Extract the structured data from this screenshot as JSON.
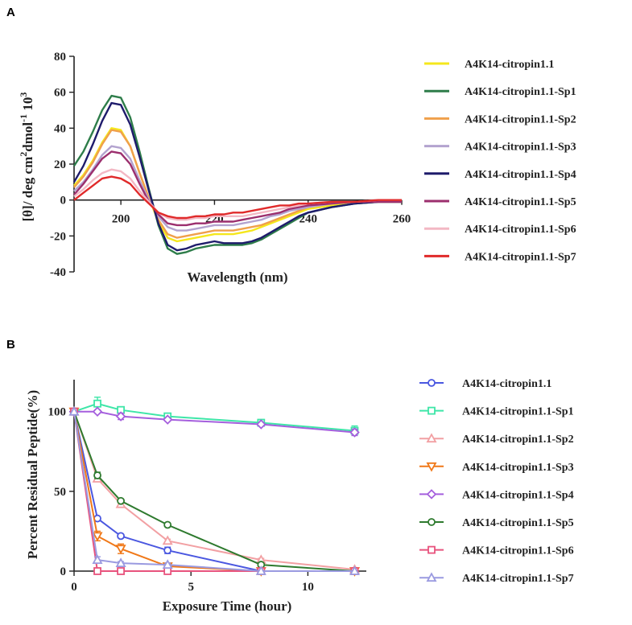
{
  "chart_data": [
    {
      "panel": "A",
      "type": "line",
      "xlabel": "Wavelength (nm)",
      "ylabel": "[θ]/ deg cm²dmol⁻¹ 10³",
      "ylabel_main": "[θ]/ deg cm",
      "ylabel_sup1": "2",
      "ylabel_mid": "dmol",
      "ylabel_sup2": "-1",
      "ylabel_end": " 10",
      "ylabel_sup3": "3",
      "xlim": [
        190,
        260
      ],
      "ylim": [
        -40,
        80
      ],
      "x_ticks": [
        "200",
        "220",
        "240",
        "260"
      ],
      "y_ticks": [
        "80",
        "60",
        "40",
        "20",
        "0",
        "-20",
        "-40"
      ],
      "x": [
        190,
        192,
        194,
        196,
        198,
        200,
        202,
        204,
        206,
        208,
        210,
        212,
        214,
        216,
        218,
        220,
        222,
        224,
        226,
        228,
        230,
        232,
        234,
        236,
        238,
        240,
        245,
        250,
        255,
        260
      ],
      "series": [
        {
          "name": "A4K14-citropin1.1",
          "color": "#f5e71c",
          "values": [
            8,
            14,
            22,
            32,
            40,
            39,
            30,
            15,
            1,
            -12,
            -21,
            -23,
            -22,
            -21,
            -20,
            -19,
            -19,
            -19,
            -18,
            -17,
            -15,
            -13,
            -11,
            -9,
            -7,
            -5,
            -3,
            -2,
            -1,
            -1
          ]
        },
        {
          "name": "A4K14-citropin1.1-Sp1",
          "color": "#2e7d4a",
          "values": [
            19,
            27,
            38,
            50,
            58,
            57,
            46,
            27,
            6,
            -14,
            -27,
            -30,
            -29,
            -27,
            -26,
            -25,
            -25,
            -25,
            -25,
            -24,
            -22,
            -19,
            -16,
            -13,
            -10,
            -7,
            -4,
            -2,
            -1,
            -1
          ]
        },
        {
          "name": "A4K14-citropin1.1-Sp2",
          "color": "#f0a04b",
          "values": [
            7,
            13,
            21,
            31,
            39,
            38,
            30,
            15,
            1,
            -11,
            -19,
            -21,
            -20,
            -19,
            -18,
            -17,
            -17,
            -17,
            -16,
            -15,
            -14,
            -12,
            -10,
            -8,
            -6,
            -4,
            -2,
            -1,
            -1,
            -1
          ]
        },
        {
          "name": "A4K14-citropin1.1-Sp3",
          "color": "#b3a3cf",
          "values": [
            5,
            10,
            17,
            25,
            30,
            29,
            23,
            11,
            0,
            -9,
            -15,
            -17,
            -17,
            -16,
            -15,
            -14,
            -14,
            -14,
            -13,
            -12,
            -11,
            -9,
            -8,
            -6,
            -5,
            -4,
            -2,
            -1,
            -1,
            -1
          ]
        },
        {
          "name": "A4K14-citropin1.1-Sp4",
          "color": "#1e1b6b",
          "values": [
            10,
            19,
            31,
            44,
            54,
            53,
            42,
            24,
            5,
            -13,
            -25,
            -28,
            -27,
            -25,
            -24,
            -23,
            -24,
            -24,
            -24,
            -23,
            -21,
            -18,
            -15,
            -12,
            -9,
            -7,
            -4,
            -2,
            -1,
            -1
          ]
        },
        {
          "name": "A4K14-citropin1.1-Sp5",
          "color": "#9c2f6e",
          "values": [
            3,
            9,
            16,
            23,
            27,
            26,
            20,
            9,
            -1,
            -8,
            -13,
            -14,
            -14,
            -13,
            -13,
            -12,
            -12,
            -12,
            -11,
            -10,
            -9,
            -8,
            -7,
            -5,
            -4,
            -3,
            -2,
            -1,
            -1,
            -1
          ]
        },
        {
          "name": "A4K14-citropin1.1-Sp6",
          "color": "#f3b8c4",
          "values": [
            2,
            6,
            11,
            15,
            17,
            16,
            12,
            5,
            -1,
            -7,
            -10,
            -11,
            -11,
            -10,
            -10,
            -9,
            -9,
            -9,
            -9,
            -8,
            -7,
            -6,
            -5,
            -4,
            -3,
            -2,
            -1,
            -1,
            0,
            0
          ]
        },
        {
          "name": "A4K14-citropin1.1-Sp7",
          "color": "#e02a2a",
          "values": [
            0,
            4,
            8,
            12,
            13,
            12,
            9,
            3,
            -2,
            -7,
            -9,
            -10,
            -10,
            -9,
            -9,
            -8,
            -8,
            -7,
            -7,
            -6,
            -5,
            -4,
            -3,
            -3,
            -2,
            -2,
            -1,
            -1,
            0,
            0
          ]
        }
      ]
    },
    {
      "panel": "B",
      "type": "line",
      "xlabel": "Exposure Time (hour)",
      "ylabel": "Percent Residual Peptide(%)",
      "xlim": [
        0,
        12.5
      ],
      "ylim": [
        0,
        120
      ],
      "x_ticks": [
        "0",
        "5",
        "10"
      ],
      "y_ticks": [
        "100",
        "50",
        "0"
      ],
      "x": [
        0,
        1,
        2,
        4,
        8,
        12
      ],
      "series": [
        {
          "name": "A4K14-citropin1.1",
          "color": "#4a57e0",
          "marker": "circle",
          "values": [
            100,
            33,
            22,
            13,
            0,
            0
          ],
          "errors": [
            0,
            1,
            1,
            2,
            0,
            0
          ]
        },
        {
          "name": "A4K14-citropin1.1-Sp1",
          "color": "#3ee6a8",
          "marker": "square",
          "values": [
            100,
            105,
            101,
            97,
            93,
            88
          ],
          "errors": [
            0,
            4,
            1,
            1,
            2,
            3
          ]
        },
        {
          "name": "A4K14-citropin1.1-Sp2",
          "color": "#f2a0a3",
          "marker": "triangle-up",
          "values": [
            100,
            58,
            42,
            19,
            7,
            1
          ],
          "errors": [
            0,
            2,
            1,
            1,
            1,
            0
          ]
        },
        {
          "name": "A4K14-citropin1.1-Sp3",
          "color": "#f07818",
          "marker": "triangle-down",
          "values": [
            100,
            22,
            14,
            3,
            0,
            0
          ],
          "errors": [
            0,
            3,
            3,
            1,
            0,
            0
          ]
        },
        {
          "name": "A4K14-citropin1.1-Sp4",
          "color": "#a55fdd",
          "marker": "diamond",
          "values": [
            100,
            100,
            97,
            95,
            92,
            87
          ],
          "errors": [
            0,
            1,
            2,
            1,
            1,
            2
          ]
        },
        {
          "name": "A4K14-citropin1.1-Sp5",
          "color": "#2e7a2e",
          "marker": "circle",
          "values": [
            100,
            60,
            44,
            29,
            4,
            0
          ],
          "errors": [
            0,
            2,
            1,
            1,
            1,
            0
          ]
        },
        {
          "name": "A4K14-citropin1.1-Sp6",
          "color": "#e8537d",
          "marker": "square",
          "values": [
            100,
            0,
            0,
            0,
            0,
            0
          ],
          "errors": [
            0,
            0,
            0,
            0,
            0,
            0
          ]
        },
        {
          "name": "A4K14-citropin1.1-Sp7",
          "color": "#9a9ae0",
          "marker": "triangle-up",
          "values": [
            100,
            7,
            5,
            4,
            0,
            0
          ],
          "errors": [
            0,
            2,
            1,
            1,
            0,
            0
          ]
        }
      ]
    }
  ]
}
